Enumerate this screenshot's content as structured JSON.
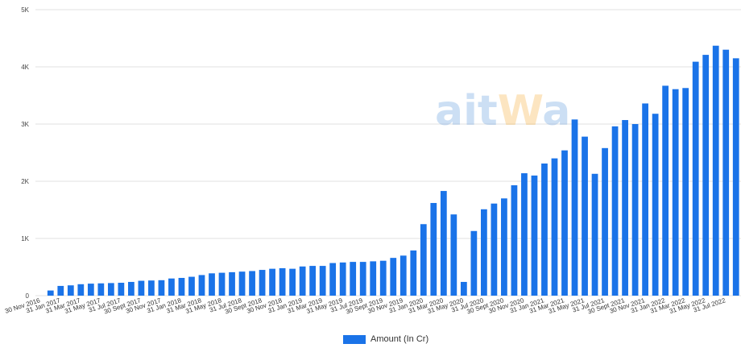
{
  "colors": {
    "bar": "#1a73e8",
    "grid": "#e2e2e2",
    "watermark_main": "#4a90d9",
    "watermark_accent": "#f5a623"
  },
  "watermark": {
    "text_part1": "ait",
    "text_part2": "W",
    "text_part3": "a"
  },
  "chart_data": {
    "type": "bar",
    "title": "",
    "xlabel": "",
    "ylabel": "",
    "ylim": [
      0,
      5000
    ],
    "yticks": [
      {
        "value": 0,
        "label": "0"
      },
      {
        "value": 1000,
        "label": "1K"
      },
      {
        "value": 2000,
        "label": "2K"
      },
      {
        "value": 3000,
        "label": "3K"
      },
      {
        "value": 4000,
        "label": "4K"
      },
      {
        "value": 5000,
        "label": "5K"
      }
    ],
    "grid": true,
    "legend_position": "bottom",
    "xtick_labels": [
      {
        "index": 0,
        "label": "30 Nov 2016"
      },
      {
        "index": 2,
        "label": "31 Jan 2017"
      },
      {
        "index": 4,
        "label": "31 Mar 2017"
      },
      {
        "index": 6,
        "label": "31 May 2017"
      },
      {
        "index": 8,
        "label": "31 Jul 2017"
      },
      {
        "index": 10,
        "label": "30 Sept 2017"
      },
      {
        "index": 12,
        "label": "30 Nov 2017"
      },
      {
        "index": 14,
        "label": "31 Jan 2018"
      },
      {
        "index": 16,
        "label": "31 Mar 2018"
      },
      {
        "index": 18,
        "label": "31 May 2018"
      },
      {
        "index": 20,
        "label": "31 Jul 2018"
      },
      {
        "index": 22,
        "label": "30 Sept 2018"
      },
      {
        "index": 24,
        "label": "30 Nov 2018"
      },
      {
        "index": 26,
        "label": "31 Jan 2019"
      },
      {
        "index": 28,
        "label": "31 Mar 2019"
      },
      {
        "index": 30,
        "label": "31 May 2019"
      },
      {
        "index": 32,
        "label": "31 Jul 2019"
      },
      {
        "index": 34,
        "label": "30 Sept 2019"
      },
      {
        "index": 36,
        "label": "30 Nov 2019"
      },
      {
        "index": 38,
        "label": "31 Jan 2020"
      },
      {
        "index": 40,
        "label": "31 Mar 2020"
      },
      {
        "index": 42,
        "label": "31 May 2020"
      },
      {
        "index": 44,
        "label": "31 Jul 2020"
      },
      {
        "index": 46,
        "label": "30 Sept 2020"
      },
      {
        "index": 48,
        "label": "30 Nov 2020"
      },
      {
        "index": 50,
        "label": "31 Jan 2021"
      },
      {
        "index": 52,
        "label": "31 Mar 2021"
      },
      {
        "index": 54,
        "label": "31 May 2021"
      },
      {
        "index": 56,
        "label": "31 Jul 2021"
      },
      {
        "index": 58,
        "label": "30 Sept 2021"
      },
      {
        "index": 60,
        "label": "30 Nov 2021"
      },
      {
        "index": 62,
        "label": "31 Jan 2022"
      },
      {
        "index": 64,
        "label": "31 Mar 2022"
      },
      {
        "index": 66,
        "label": "31 May 2022"
      },
      {
        "index": 68,
        "label": "31 Jul 2022"
      }
    ],
    "series": [
      {
        "name": "Amount (In Cr)",
        "values": [
          0,
          90,
          170,
          180,
          200,
          210,
          215,
          220,
          225,
          240,
          260,
          265,
          270,
          300,
          310,
          330,
          360,
          390,
          400,
          410,
          420,
          430,
          450,
          470,
          480,
          470,
          510,
          520,
          520,
          570,
          580,
          590,
          590,
          600,
          610,
          660,
          700,
          790,
          1250,
          1620,
          1830,
          1420,
          240,
          1130,
          1510,
          1610,
          1700,
          1930,
          2140,
          2100,
          2310,
          2400,
          2540,
          3080,
          2780,
          2130,
          2580,
          2960,
          3070,
          3000,
          3360,
          3180,
          3670,
          3610,
          3630,
          4090,
          4210,
          4370,
          4300,
          4150
        ]
      }
    ]
  }
}
